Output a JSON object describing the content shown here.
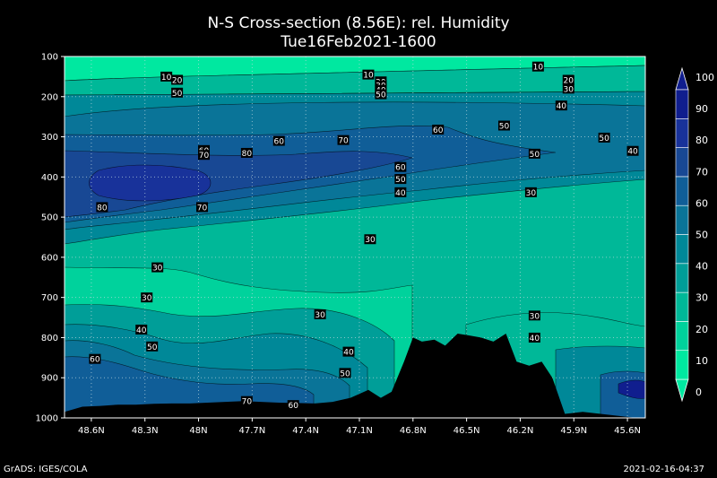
{
  "title": "N-S Cross-section (8.56E): rel. Humidity",
  "subtitle": "Tue16Feb2021-1600",
  "footer_left": "GrADS: IGES/COLA",
  "footer_right": "2021-02-16-04:37",
  "chart_data": {
    "type": "contour",
    "xlabels": [
      "48.6N",
      "48.3N",
      "48N",
      "47.7N",
      "47.4N",
      "47.1N",
      "46.8N",
      "46.5N",
      "46.2N",
      "45.9N",
      "45.6N"
    ],
    "ylabels": [
      "100",
      "200",
      "300",
      "400",
      "500",
      "600",
      "700",
      "800",
      "900",
      "1000"
    ],
    "ylim": [
      100,
      1000
    ],
    "xlim_lat": [
      48.75,
      45.5
    ],
    "grid": true,
    "colorbar": {
      "labels": [
        "100",
        "90",
        "80",
        "70",
        "60",
        "50",
        "40",
        "30",
        "20",
        "10",
        "0"
      ],
      "levels": [
        0,
        10,
        20,
        30,
        40,
        50,
        60,
        70,
        80,
        90,
        100
      ],
      "colors": [
        "#00e8a0",
        "#00d29c",
        "#00b898",
        "#009e98",
        "#008898",
        "#0a7498",
        "#105e98",
        "#184894",
        "#18329a",
        "#101e8e"
      ]
    },
    "contour_labels": [
      {
        "text": "10",
        "lat": 48.18,
        "p": 150
      },
      {
        "text": "20",
        "lat": 48.12,
        "p": 158
      },
      {
        "text": "10",
        "lat": 47.05,
        "p": 145
      },
      {
        "text": "10",
        "lat": 46.1,
        "p": 125
      },
      {
        "text": "20",
        "lat": 46.98,
        "p": 162
      },
      {
        "text": "30",
        "lat": 46.98,
        "p": 172
      },
      {
        "text": "40",
        "lat": 46.98,
        "p": 183
      },
      {
        "text": "50",
        "lat": 46.98,
        "p": 194
      },
      {
        "text": "20",
        "lat": 45.93,
        "p": 158
      },
      {
        "text": "30",
        "lat": 45.93,
        "p": 180
      },
      {
        "text": "40",
        "lat": 45.97,
        "p": 222
      },
      {
        "text": "50",
        "lat": 48.12,
        "p": 190
      },
      {
        "text": "60",
        "lat": 47.97,
        "p": 333
      },
      {
        "text": "70",
        "lat": 47.97,
        "p": 345
      },
      {
        "text": "80",
        "lat": 47.73,
        "p": 340
      },
      {
        "text": "60",
        "lat": 47.55,
        "p": 310
      },
      {
        "text": "70",
        "lat": 47.19,
        "p": 308
      },
      {
        "text": "60",
        "lat": 46.66,
        "p": 282
      },
      {
        "text": "50",
        "lat": 46.29,
        "p": 272
      },
      {
        "text": "50",
        "lat": 45.73,
        "p": 302
      },
      {
        "text": "40",
        "lat": 45.57,
        "p": 335
      },
      {
        "text": "50",
        "lat": 46.12,
        "p": 342
      },
      {
        "text": "60",
        "lat": 46.87,
        "p": 375
      },
      {
        "text": "50",
        "lat": 46.87,
        "p": 405
      },
      {
        "text": "40",
        "lat": 46.87,
        "p": 438
      },
      {
        "text": "30",
        "lat": 46.14,
        "p": 438
      },
      {
        "text": "80",
        "lat": 48.54,
        "p": 475
      },
      {
        "text": "70",
        "lat": 47.98,
        "p": 475
      },
      {
        "text": "30",
        "lat": 47.04,
        "p": 555
      },
      {
        "text": "30",
        "lat": 48.23,
        "p": 625
      },
      {
        "text": "30",
        "lat": 48.29,
        "p": 700
      },
      {
        "text": "30",
        "lat": 47.32,
        "p": 742
      },
      {
        "text": "30",
        "lat": 46.12,
        "p": 745
      },
      {
        "text": "40",
        "lat": 48.32,
        "p": 780
      },
      {
        "text": "40",
        "lat": 46.12,
        "p": 800
      },
      {
        "text": "50",
        "lat": 48.26,
        "p": 822
      },
      {
        "text": "40",
        "lat": 47.16,
        "p": 835
      },
      {
        "text": "60",
        "lat": 48.58,
        "p": 853
      },
      {
        "text": "50",
        "lat": 47.18,
        "p": 888
      },
      {
        "text": "70",
        "lat": 47.73,
        "p": 958
      },
      {
        "text": "60",
        "lat": 47.47,
        "p": 968
      }
    ],
    "topography": {
      "lat": [
        48.75,
        48.65,
        48.55,
        48.45,
        48.35,
        48.25,
        48.15,
        48.05,
        47.95,
        47.85,
        47.75,
        47.65,
        47.55,
        47.45,
        47.35,
        47.25,
        47.15,
        47.05,
        46.98,
        46.92,
        46.85,
        46.8,
        46.75,
        46.68,
        46.62,
        46.55,
        46.48,
        46.42,
        46.35,
        46.28,
        46.22,
        46.15,
        46.08,
        46.02,
        45.95,
        45.85,
        45.75,
        45.65,
        45.55,
        45.5
      ],
      "p": [
        985,
        972,
        970,
        967,
        967,
        965,
        964,
        964,
        962,
        960,
        958,
        960,
        962,
        963,
        964,
        960,
        950,
        930,
        950,
        935,
        860,
        800,
        810,
        805,
        820,
        790,
        795,
        800,
        810,
        790,
        860,
        870,
        860,
        900,
        990,
        985,
        990,
        995,
        1000,
        1000
      ]
    }
  }
}
